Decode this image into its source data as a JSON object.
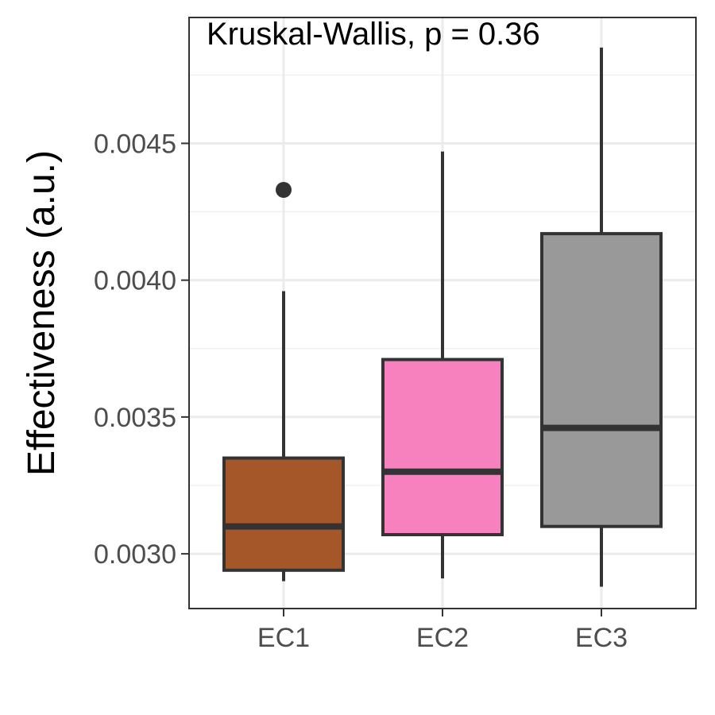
{
  "chart_data": {
    "type": "box",
    "annotation": "Kruskal-Wallis, p = 0.36",
    "xlabel": "",
    "ylabel": "Effectiveness (a.u.)",
    "ylim": [
      0.0028,
      0.00496
    ],
    "yticks": [
      0.003,
      0.0035,
      0.004,
      0.0045
    ],
    "ytick_labels": [
      "0.0030",
      "0.0035",
      "0.0040",
      "0.0045"
    ],
    "categories": [
      "EC1",
      "EC2",
      "EC3"
    ],
    "grid": true,
    "legend": "none",
    "boxes": [
      {
        "name": "EC1",
        "whisker_low": 0.0029,
        "q1": 0.00294,
        "median": 0.0031,
        "q3": 0.00335,
        "whisker_high": 0.00396,
        "outliers": [
          0.00433
        ],
        "color": "#a6572a"
      },
      {
        "name": "EC2",
        "whisker_low": 0.00291,
        "q1": 0.00307,
        "median": 0.0033,
        "q3": 0.00371,
        "whisker_high": 0.00447,
        "outliers": [],
        "color": "#f781bf"
      },
      {
        "name": "EC3",
        "whisker_low": 0.00288,
        "q1": 0.0031,
        "median": 0.00346,
        "q3": 0.00417,
        "whisker_high": 0.00485,
        "outliers": [],
        "color": "#999999"
      }
    ]
  }
}
